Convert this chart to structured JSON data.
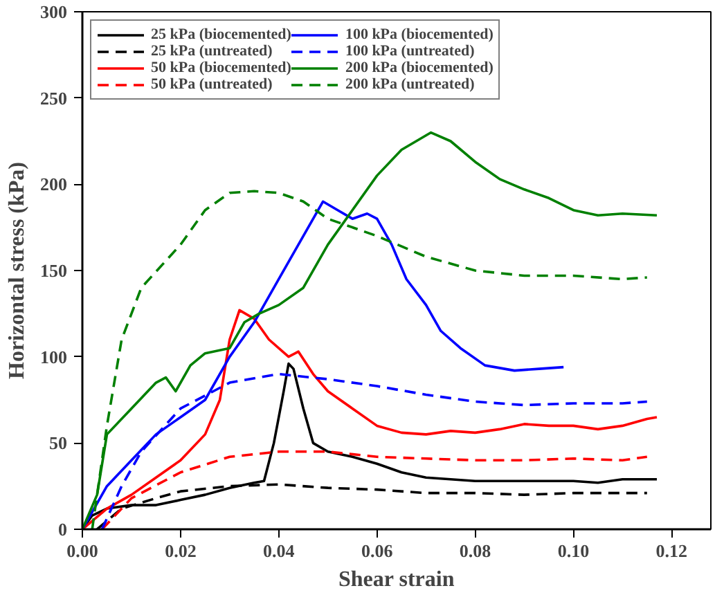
{
  "chart_data": {
    "type": "line",
    "xlabel": "Shear strain",
    "ylabel": "Horizontal stress (kPa)",
    "xlim": [
      0,
      0.128
    ],
    "ylim": [
      0,
      300
    ],
    "xticks": [
      {
        "value": 0,
        "label": "0.00"
      },
      {
        "value": 0.02,
        "label": "0.02"
      },
      {
        "value": 0.04,
        "label": "0.04"
      },
      {
        "value": 0.06,
        "label": "0.06"
      },
      {
        "value": 0.08,
        "label": "0.08"
      },
      {
        "value": 0.1,
        "label": "0.10"
      },
      {
        "value": 0.12,
        "label": "0.12"
      }
    ],
    "yticks": [
      0,
      50,
      100,
      150,
      200,
      250,
      300
    ],
    "grid": false,
    "legend": "top left",
    "marker": "none",
    "series": [
      {
        "name": "25 kPa (biocemented)",
        "color": "#000000",
        "line_style": "solid",
        "x": [
          0,
          0.002,
          0.005,
          0.01,
          0.015,
          0.02,
          0.025,
          0.03,
          0.035,
          0.037,
          0.039,
          0.041,
          0.042,
          0.043,
          0.045,
          0.047,
          0.05,
          0.055,
          0.06,
          0.065,
          0.07,
          0.08,
          0.09,
          0.1,
          0.105,
          0.11,
          0.117
        ],
        "values": [
          0,
          8,
          12,
          14,
          14,
          17,
          20,
          24,
          27,
          28,
          50,
          80,
          96,
          93,
          70,
          50,
          45,
          42,
          38,
          33,
          30,
          28,
          28,
          28,
          27,
          29,
          29
        ]
      },
      {
        "name": "25 kPa (untreated)",
        "color": "#000000",
        "line_style": "dashed",
        "x": [
          0.003,
          0.008,
          0.015,
          0.02,
          0.03,
          0.04,
          0.05,
          0.06,
          0.07,
          0.08,
          0.09,
          0.1,
          0.11,
          0.115
        ],
        "values": [
          0,
          12,
          18,
          22,
          25,
          26,
          24,
          23,
          21,
          21,
          20,
          21,
          21,
          21
        ]
      },
      {
        "name": "50 kPa (biocemented)",
        "color": "#ff0000",
        "line_style": "solid",
        "x": [
          0,
          0.005,
          0.01,
          0.015,
          0.02,
          0.025,
          0.028,
          0.03,
          0.032,
          0.035,
          0.038,
          0.042,
          0.044,
          0.047,
          0.05,
          0.055,
          0.06,
          0.065,
          0.07,
          0.075,
          0.08,
          0.085,
          0.09,
          0.095,
          0.1,
          0.105,
          0.11,
          0.115,
          0.117
        ],
        "values": [
          0,
          12,
          20,
          30,
          40,
          55,
          75,
          110,
          127,
          122,
          110,
          100,
          103,
          90,
          80,
          70,
          60,
          56,
          55,
          57,
          56,
          58,
          61,
          60,
          60,
          58,
          60,
          64,
          65
        ]
      },
      {
        "name": "50 kPa (untreated)",
        "color": "#ff0000",
        "line_style": "dashed",
        "x": [
          0.004,
          0.01,
          0.02,
          0.03,
          0.04,
          0.05,
          0.06,
          0.07,
          0.08,
          0.09,
          0.1,
          0.11,
          0.115
        ],
        "values": [
          0,
          18,
          33,
          42,
          45,
          45,
          42,
          41,
          40,
          40,
          41,
          40,
          42
        ]
      },
      {
        "name": "100 kPa (biocemented)",
        "color": "#0000ff",
        "line_style": "solid",
        "x": [
          0,
          0.005,
          0.01,
          0.015,
          0.02,
          0.025,
          0.03,
          0.035,
          0.04,
          0.045,
          0.049,
          0.052,
          0.055,
          0.058,
          0.06,
          0.063,
          0.066,
          0.07,
          0.073,
          0.077,
          0.082,
          0.088,
          0.093,
          0.098
        ],
        "values": [
          0,
          25,
          40,
          55,
          65,
          75,
          100,
          120,
          145,
          170,
          190,
          185,
          180,
          183,
          180,
          165,
          145,
          130,
          115,
          105,
          95,
          92,
          93,
          94
        ]
      },
      {
        "name": "100 kPa (untreated)",
        "color": "#0000ff",
        "line_style": "dashed",
        "x": [
          0.004,
          0.008,
          0.012,
          0.02,
          0.03,
          0.04,
          0.05,
          0.06,
          0.07,
          0.08,
          0.09,
          0.1,
          0.11,
          0.115
        ],
        "values": [
          0,
          25,
          45,
          70,
          85,
          90,
          87,
          83,
          78,
          74,
          72,
          73,
          73,
          74
        ]
      },
      {
        "name": "200 kPa (biocemented)",
        "color": "#008000",
        "line_style": "solid",
        "x": [
          0,
          0.003,
          0.005,
          0.01,
          0.015,
          0.017,
          0.019,
          0.022,
          0.025,
          0.03,
          0.033,
          0.036,
          0.04,
          0.045,
          0.05,
          0.055,
          0.06,
          0.065,
          0.071,
          0.075,
          0.08,
          0.085,
          0.09,
          0.095,
          0.1,
          0.105,
          0.11,
          0.117
        ],
        "values": [
          0,
          20,
          55,
          70,
          85,
          88,
          80,
          95,
          102,
          105,
          120,
          125,
          130,
          140,
          165,
          185,
          205,
          220,
          230,
          225,
          213,
          203,
          197,
          192,
          185,
          182,
          183,
          182
        ]
      },
      {
        "name": "200 kPa (untreated)",
        "color": "#008000",
        "line_style": "dashed",
        "x": [
          0.002,
          0.005,
          0.008,
          0.012,
          0.02,
          0.025,
          0.03,
          0.035,
          0.04,
          0.045,
          0.05,
          0.06,
          0.07,
          0.08,
          0.09,
          0.1,
          0.11,
          0.115
        ],
        "values": [
          0,
          60,
          110,
          140,
          165,
          185,
          195,
          196,
          195,
          190,
          180,
          170,
          158,
          150,
          147,
          147,
          145,
          146
        ]
      }
    ]
  }
}
